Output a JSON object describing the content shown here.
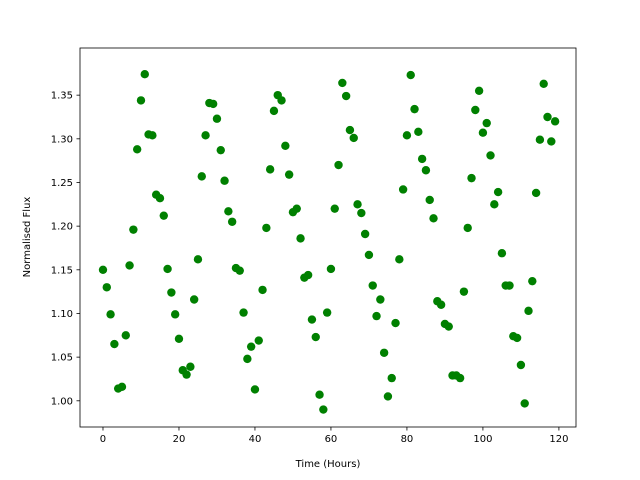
{
  "chart_data": {
    "type": "scatter",
    "xlabel": "Time (Hours)",
    "ylabel": "Normalised Flux",
    "xlim": [
      -6.05,
      124.5
    ],
    "ylim": [
      0.97,
      1.404
    ],
    "xticks": [
      0,
      20,
      40,
      60,
      80,
      100,
      120
    ],
    "yticks": [
      {
        "value": 1,
        "label": "1.00"
      },
      1.05,
      {
        "value": 1.1,
        "label": "1.10"
      },
      1.15,
      {
        "value": 1.2,
        "label": "1.20"
      },
      1.25,
      {
        "value": 1.3,
        "label": "1.30"
      },
      1.35
    ],
    "series": [
      {
        "color": "#008000",
        "x": [
          0,
          1,
          2,
          3,
          4,
          5,
          6,
          7,
          8,
          9,
          10,
          11,
          12,
          13,
          14,
          15,
          16,
          17,
          18,
          19,
          20,
          21,
          22,
          23,
          24,
          25,
          26,
          27,
          28,
          29,
          30,
          31,
          32,
          33,
          34,
          35,
          36,
          37,
          38,
          39,
          40,
          41,
          42,
          43,
          44,
          45,
          46,
          47,
          48,
          49,
          50,
          51,
          52,
          53,
          54,
          55,
          56,
          57,
          58,
          59,
          60,
          61,
          62,
          63,
          64,
          65,
          66,
          67,
          68,
          69,
          70,
          71,
          72,
          73,
          74,
          75,
          76,
          77,
          78,
          79,
          80,
          81,
          82,
          83,
          84,
          85,
          86,
          87,
          88,
          89,
          90,
          91,
          92,
          93,
          94,
          95,
          96,
          97,
          98,
          99,
          100,
          101,
          102,
          103,
          104,
          105,
          106,
          107,
          108,
          109,
          110,
          111,
          112,
          113,
          114,
          115,
          116,
          117,
          118,
          119
        ],
        "values": [
          1.15,
          1.13,
          1.099,
          1.065,
          1.014,
          1.016,
          1.075,
          1.155,
          1.196,
          1.288,
          1.344,
          1.374,
          1.305,
          1.304,
          1.236,
          1.232,
          1.212,
          1.151,
          1.124,
          1.099,
          1.071,
          1.035,
          1.03,
          1.039,
          1.116,
          1.162,
          1.257,
          1.304,
          1.341,
          1.34,
          1.323,
          1.287,
          1.252,
          1.217,
          1.205,
          1.152,
          1.149,
          1.101,
          1.048,
          1.062,
          1.013,
          1.069,
          1.127,
          1.198,
          1.265,
          1.332,
          1.35,
          1.344,
          1.292,
          1.259,
          1.216,
          1.22,
          1.186,
          1.141,
          1.144,
          1.093,
          1.073,
          1.007,
          0.99,
          1.101,
          1.151,
          1.22,
          1.27,
          1.364,
          1.349,
          1.31,
          1.301,
          1.225,
          1.215,
          1.191,
          1.167,
          1.132,
          1.097,
          1.116,
          1.055,
          1.005,
          1.026,
          1.089,
          1.162,
          1.242,
          1.304,
          1.373,
          1.334,
          1.308,
          1.277,
          1.264,
          1.23,
          1.209,
          1.114,
          1.11,
          1.088,
          1.085,
          1.029,
          1.029,
          1.026,
          1.125,
          1.198,
          1.255,
          1.333,
          1.355,
          1.307,
          1.318,
          1.281,
          1.225,
          1.239,
          1.169,
          1.132,
          1.132,
          1.074,
          1.072,
          1.041,
          0.997,
          1.103,
          1.137,
          1.238,
          1.299,
          1.363,
          1.325,
          1.297,
          1.32
        ]
      }
    ]
  }
}
